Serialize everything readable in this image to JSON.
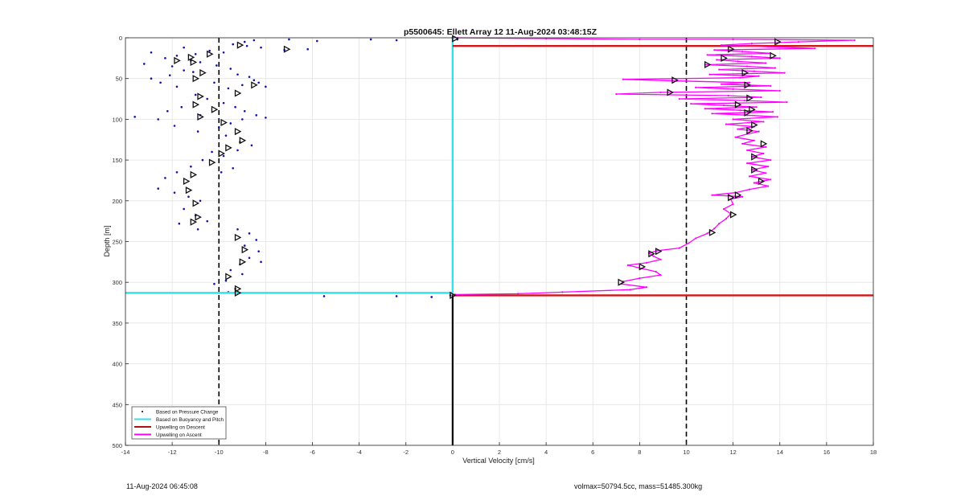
{
  "chart_data": {
    "type": "scatter",
    "title": "p5500645: Ellett Array 12 11-Aug-2024 03:48:15Z",
    "xlabel": "Vertical Velocity [cm/s]",
    "ylabel": "Depth [m]",
    "xlim": [
      -14,
      18
    ],
    "ylim": [
      0,
      500
    ],
    "y_reversed": true,
    "grid": true,
    "legend_position": "bottom-left",
    "x_ticks": [
      -14,
      -12,
      -10,
      -8,
      -6,
      -4,
      -2,
      0,
      2,
      4,
      6,
      8,
      10,
      12,
      14,
      16,
      18
    ],
    "y_ticks": [
      0,
      50,
      100,
      150,
      200,
      250,
      300,
      350,
      400,
      450,
      500
    ],
    "reference_lines": [
      -10,
      10
    ],
    "legend": [
      {
        "name": "Based on Pressure Change",
        "color": "#000000",
        "style": "dot"
      },
      {
        "name": "Based on Buoyancy and Pitch",
        "color": "#33e0ee",
        "style": "line"
      },
      {
        "name": "Upwelling on Descent",
        "color": "#b01010",
        "style": "line"
      },
      {
        "name": "Upwelling on Ascent",
        "color": "#ff00ff",
        "style": "line"
      }
    ],
    "series": [
      {
        "name": "Based on Pressure Change",
        "color": "#1010b0",
        "points": [
          [
            -8.9,
            5
          ],
          [
            -8.5,
            3
          ],
          [
            -7.0,
            2
          ],
          [
            -5.8,
            4
          ],
          [
            -2.4,
            3
          ],
          [
            -3.5,
            2
          ],
          [
            -9.4,
            8
          ],
          [
            -8.8,
            10
          ],
          [
            -8.2,
            12
          ],
          [
            -7.2,
            15
          ],
          [
            -6.2,
            14
          ],
          [
            -9.8,
            18
          ],
          [
            -10.4,
            16
          ],
          [
            -11.5,
            12
          ],
          [
            -11.0,
            20
          ],
          [
            -11.8,
            22
          ],
          [
            -12.3,
            25
          ],
          [
            -12.9,
            18
          ],
          [
            -13.2,
            32
          ],
          [
            -12.0,
            35
          ],
          [
            -11.2,
            28
          ],
          [
            -10.8,
            30
          ],
          [
            -10.1,
            34
          ],
          [
            -9.5,
            38
          ],
          [
            -9.2,
            45
          ],
          [
            -8.7,
            48
          ],
          [
            -8.3,
            55
          ],
          [
            -8.0,
            60
          ],
          [
            -8.5,
            52
          ],
          [
            -9.0,
            58
          ],
          [
            -9.6,
            62
          ],
          [
            -10.2,
            55
          ],
          [
            -11.1,
            42
          ],
          [
            -11.5,
            40
          ],
          [
            -12.1,
            46
          ],
          [
            -12.5,
            55
          ],
          [
            -12.9,
            50
          ],
          [
            -11.8,
            60
          ],
          [
            -11.0,
            70
          ],
          [
            -10.5,
            75
          ],
          [
            -9.8,
            80
          ],
          [
            -9.3,
            85
          ],
          [
            -8.9,
            90
          ],
          [
            -8.4,
            95
          ],
          [
            -9.0,
            100
          ],
          [
            -9.5,
            105
          ],
          [
            -10.0,
            110
          ],
          [
            -10.8,
            95
          ],
          [
            -11.6,
            85
          ],
          [
            -12.2,
            90
          ],
          [
            -12.6,
            100
          ],
          [
            -11.9,
            108
          ],
          [
            -10.9,
            115
          ],
          [
            -9.7,
            120
          ],
          [
            -9.1,
            128
          ],
          [
            -8.6,
            132
          ],
          [
            -9.2,
            138
          ],
          [
            -9.8,
            145
          ],
          [
            -10.3,
            140
          ],
          [
            -10.7,
            150
          ],
          [
            -11.2,
            158
          ],
          [
            -11.8,
            165
          ],
          [
            -12.3,
            172
          ],
          [
            -12.6,
            185
          ],
          [
            -11.9,
            190
          ],
          [
            -11.3,
            195
          ],
          [
            -10.8,
            200
          ],
          [
            -11.5,
            210
          ],
          [
            -11.0,
            218
          ],
          [
            -10.5,
            225
          ],
          [
            -11.7,
            228
          ],
          [
            -10.9,
            235
          ],
          [
            -9.2,
            235
          ],
          [
            -8.7,
            240
          ],
          [
            -8.4,
            248
          ],
          [
            -8.9,
            255
          ],
          [
            -8.3,
            262
          ],
          [
            -8.7,
            270
          ],
          [
            -8.2,
            275
          ],
          [
            -9.1,
            278
          ],
          [
            -9.5,
            285
          ],
          [
            -9.0,
            290
          ],
          [
            -9.7,
            298
          ],
          [
            -10.2,
            302
          ],
          [
            -9.3,
            308
          ],
          [
            -9.6,
            312
          ],
          [
            -13.6,
            97
          ],
          [
            -8.0,
            98
          ],
          [
            -9.9,
            165
          ],
          [
            -9.4,
            160
          ],
          [
            -5.5,
            317
          ],
          [
            -2.4,
            317
          ],
          [
            -0.9,
            318
          ],
          [
            -0.1,
            316
          ],
          [
            0.0,
            0
          ],
          [
            0.2,
            2
          ]
        ]
      },
      {
        "name": "Based on Buoyancy and Pitch",
        "color": "#33e0ee",
        "segments": [
          [
            [
              0.0,
              0
            ],
            [
              0.0,
              313
            ]
          ],
          [
            [
              -14.0,
              313
            ],
            [
              0.0,
              313
            ]
          ]
        ]
      },
      {
        "name": "Upwelling on Descent",
        "color": "#d41515",
        "segments": [
          [
            [
              0.0,
              10
            ],
            [
              18.0,
              10
            ]
          ],
          [
            [
              0.0,
              316
            ],
            [
              18.0,
              316
            ]
          ]
        ]
      },
      {
        "name": "Upwelling on Ascent",
        "color": "#ff00ff",
        "points": [
          [
            0.2,
            0
          ],
          [
            4.0,
            1
          ],
          [
            8.0,
            2
          ],
          [
            12.0,
            2
          ],
          [
            17.2,
            3
          ],
          [
            14.8,
            5
          ],
          [
            12.8,
            7
          ],
          [
            11.5,
            9
          ],
          [
            13.5,
            11
          ],
          [
            15.5,
            13
          ],
          [
            11.2,
            15
          ],
          [
            12.4,
            17
          ],
          [
            13.6,
            19
          ],
          [
            10.9,
            21
          ],
          [
            12.8,
            23
          ],
          [
            14.0,
            25
          ],
          [
            11.3,
            27
          ],
          [
            12.2,
            29
          ],
          [
            13.4,
            31
          ],
          [
            10.8,
            33
          ],
          [
            12.6,
            35
          ],
          [
            13.8,
            37
          ],
          [
            11.4,
            39
          ],
          [
            12.9,
            41
          ],
          [
            14.2,
            43
          ],
          [
            11.0,
            45
          ],
          [
            13.1,
            47
          ],
          [
            12.3,
            49
          ],
          [
            7.3,
            51
          ],
          [
            9.6,
            53
          ],
          [
            12.7,
            55
          ],
          [
            11.5,
            57
          ],
          [
            13.6,
            59
          ],
          [
            10.4,
            61
          ],
          [
            12.0,
            63
          ],
          [
            14.0,
            65
          ],
          [
            8.9,
            67
          ],
          [
            7.0,
            69
          ],
          [
            11.8,
            71
          ],
          [
            13.2,
            73
          ],
          [
            9.7,
            75
          ],
          [
            12.5,
            77
          ],
          [
            14.3,
            79
          ],
          [
            10.2,
            81
          ],
          [
            11.6,
            83
          ],
          [
            13.0,
            85
          ],
          [
            10.8,
            87
          ],
          [
            12.3,
            89
          ],
          [
            13.7,
            91
          ],
          [
            11.1,
            93
          ],
          [
            12.6,
            95
          ],
          [
            13.9,
            97
          ],
          [
            12.0,
            100
          ],
          [
            13.3,
            103
          ],
          [
            11.7,
            106
          ],
          [
            12.9,
            109
          ],
          [
            12.2,
            112
          ],
          [
            13.1,
            115
          ],
          [
            12.6,
            118
          ],
          [
            12.1,
            122
          ],
          [
            12.9,
            126
          ],
          [
            12.4,
            130
          ],
          [
            13.4,
            134
          ],
          [
            12.6,
            138
          ],
          [
            13.3,
            142
          ],
          [
            12.8,
            146
          ],
          [
            13.6,
            150
          ],
          [
            12.6,
            154
          ],
          [
            13.5,
            158
          ],
          [
            12.8,
            162
          ],
          [
            13.4,
            166
          ],
          [
            12.7,
            170
          ],
          [
            13.6,
            174
          ],
          [
            12.9,
            178
          ],
          [
            13.5,
            182
          ],
          [
            12.7,
            186
          ],
          [
            12.1,
            190
          ],
          [
            11.1,
            193
          ],
          [
            12.4,
            195
          ],
          [
            11.9,
            198
          ],
          [
            12.0,
            204
          ],
          [
            11.6,
            210
          ],
          [
            11.9,
            216
          ],
          [
            11.7,
            222
          ],
          [
            11.4,
            228
          ],
          [
            11.2,
            234
          ],
          [
            10.9,
            240
          ],
          [
            10.4,
            246
          ],
          [
            10.1,
            252
          ],
          [
            9.7,
            258
          ],
          [
            8.8,
            261
          ],
          [
            8.4,
            264
          ],
          [
            8.6,
            268
          ],
          [
            8.9,
            272
          ],
          [
            8.3,
            276
          ],
          [
            7.5,
            279
          ],
          [
            8.1,
            283
          ],
          [
            8.7,
            287
          ],
          [
            8.9,
            291
          ],
          [
            8.0,
            295
          ],
          [
            7.3,
            299
          ],
          [
            7.2,
            302
          ],
          [
            8.3,
            306
          ],
          [
            7.6,
            309
          ],
          [
            4.7,
            312
          ],
          [
            2.8,
            314
          ],
          [
            0.1,
            315
          ]
        ]
      }
    ],
    "markers": {
      "color": "#111111",
      "points": [
        [
          -9.1,
          9
        ],
        [
          -7.1,
          14
        ],
        [
          -10.4,
          20
        ],
        [
          -11.2,
          24
        ],
        [
          -11.8,
          28
        ],
        [
          -11.1,
          30
        ],
        [
          -10.7,
          43
        ],
        [
          -11.0,
          50
        ],
        [
          -8.5,
          58
        ],
        [
          -9.2,
          68
        ],
        [
          -10.8,
          72
        ],
        [
          -11.0,
          82
        ],
        [
          -10.2,
          88
        ],
        [
          -10.8,
          97
        ],
        [
          -9.8,
          104
        ],
        [
          -9.2,
          115
        ],
        [
          -9.0,
          126
        ],
        [
          -9.6,
          135
        ],
        [
          -9.9,
          142
        ],
        [
          -10.3,
          153
        ],
        [
          -11.1,
          168
        ],
        [
          -11.4,
          176
        ],
        [
          -11.3,
          187
        ],
        [
          -11.0,
          203
        ],
        [
          -10.9,
          220
        ],
        [
          -11.1,
          226
        ],
        [
          -9.2,
          245
        ],
        [
          -8.9,
          260
        ],
        [
          -9.0,
          275
        ],
        [
          -9.6,
          293
        ],
        [
          -9.2,
          308
        ],
        [
          -9.2,
          313
        ],
        [
          0.1,
          1
        ],
        [
          13.9,
          5
        ],
        [
          11.9,
          14
        ],
        [
          13.7,
          22
        ],
        [
          11.6,
          25
        ],
        [
          10.9,
          33
        ],
        [
          12.5,
          43
        ],
        [
          9.5,
          52
        ],
        [
          12.6,
          58
        ],
        [
          9.3,
          67
        ],
        [
          12.7,
          74
        ],
        [
          12.2,
          82
        ],
        [
          12.8,
          88
        ],
        [
          12.6,
          92
        ],
        [
          12.9,
          107
        ],
        [
          12.7,
          114
        ],
        [
          13.3,
          130
        ],
        [
          12.9,
          146
        ],
        [
          12.9,
          162
        ],
        [
          13.2,
          176
        ],
        [
          12.2,
          193
        ],
        [
          11.9,
          196
        ],
        [
          12.0,
          217
        ],
        [
          11.1,
          239
        ],
        [
          8.8,
          262
        ],
        [
          8.5,
          265
        ],
        [
          8.1,
          281
        ],
        [
          7.2,
          300
        ],
        [
          0.0,
          316
        ]
      ]
    }
  },
  "footer": {
    "left": "11-Aug-2024 06:45:08",
    "right": "volmax=50794.5cc, mass=51485.300kg"
  }
}
